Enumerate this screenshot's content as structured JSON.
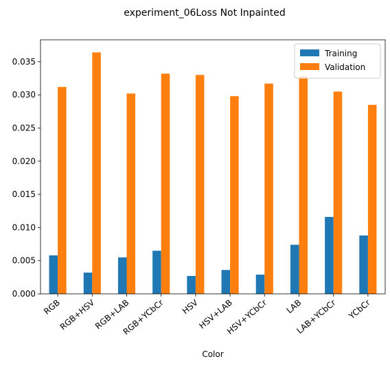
{
  "chart_data": {
    "type": "bar",
    "title": "experiment_06Loss Not Inpainted",
    "xlabel": "Color",
    "ylabel": "",
    "ylim": [
      0,
      0.0383
    ],
    "yticks": [
      "0.000",
      "0.005",
      "0.010",
      "0.015",
      "0.020",
      "0.025",
      "0.030",
      "0.035"
    ],
    "categories": [
      "RGB",
      "RGB+HSV",
      "RGB+LAB",
      "RGB+YCbCr",
      "HSV",
      "HSV+LAB",
      "HSV+YCbCr",
      "LAB",
      "LAB+YCbCr",
      "YCbCr"
    ],
    "series": [
      {
        "name": "Training",
        "color": "#1f77b4",
        "values": [
          0.0058,
          0.0032,
          0.0055,
          0.0065,
          0.0027,
          0.0036,
          0.0029,
          0.0074,
          0.0116,
          0.0088
        ]
      },
      {
        "name": "Validation",
        "color": "#ff7f0e",
        "values": [
          0.0312,
          0.0364,
          0.0302,
          0.0332,
          0.033,
          0.0298,
          0.0317,
          0.0328,
          0.0305,
          0.0285
        ]
      }
    ],
    "legend_position": "top-right",
    "grid": false
  }
}
